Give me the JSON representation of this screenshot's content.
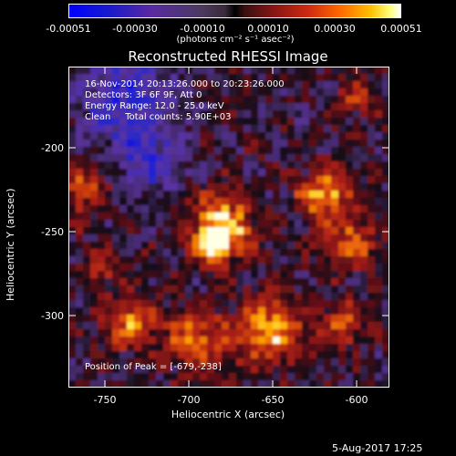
{
  "colorbar": {
    "ticks": [
      "-0.00051",
      "-0.00030",
      "-0.00010",
      "0.00010",
      "0.00030",
      "0.00051"
    ],
    "units": "(photons cm⁻² s⁻¹ asec⁻²)"
  },
  "title": "Reconstructed RHESSI Image",
  "info": {
    "line1": "16-Nov-2014 20:13:26.000 to 20:23:26.000",
    "line2": "Detectors: 3F 6F 9F, Att 0",
    "line3": "Energy Range: 12.0 - 25.0 keV",
    "line4": "Clean     Total counts: 5.90E+03"
  },
  "peak_label": "Position of Peak = [-679,-238]",
  "x_ticks": [
    "-750",
    "-700",
    "-650",
    "-600"
  ],
  "y_ticks": [
    "-200",
    "-250",
    "-300"
  ],
  "xlabel": "Heliocentric X (arcsec)",
  "ylabel": "Heliocentric Y (arcsec)",
  "timestamp": "5-Aug-2017 17:25",
  "chart_data": {
    "type": "heatmap",
    "title": "Reconstructed RHESSI Image",
    "xlabel": "Heliocentric X (arcsec)",
    "ylabel": "Heliocentric Y (arcsec)",
    "xlim": [
      -772,
      -580
    ],
    "ylim": [
      -345,
      -150
    ],
    "x_ticks": [
      -750,
      -700,
      -650,
      -600
    ],
    "y_ticks": [
      -200,
      -250,
      -300
    ],
    "color_range": [
      -0.00051,
      0.00051
    ],
    "peak": [
      -679,
      -238
    ]
  }
}
